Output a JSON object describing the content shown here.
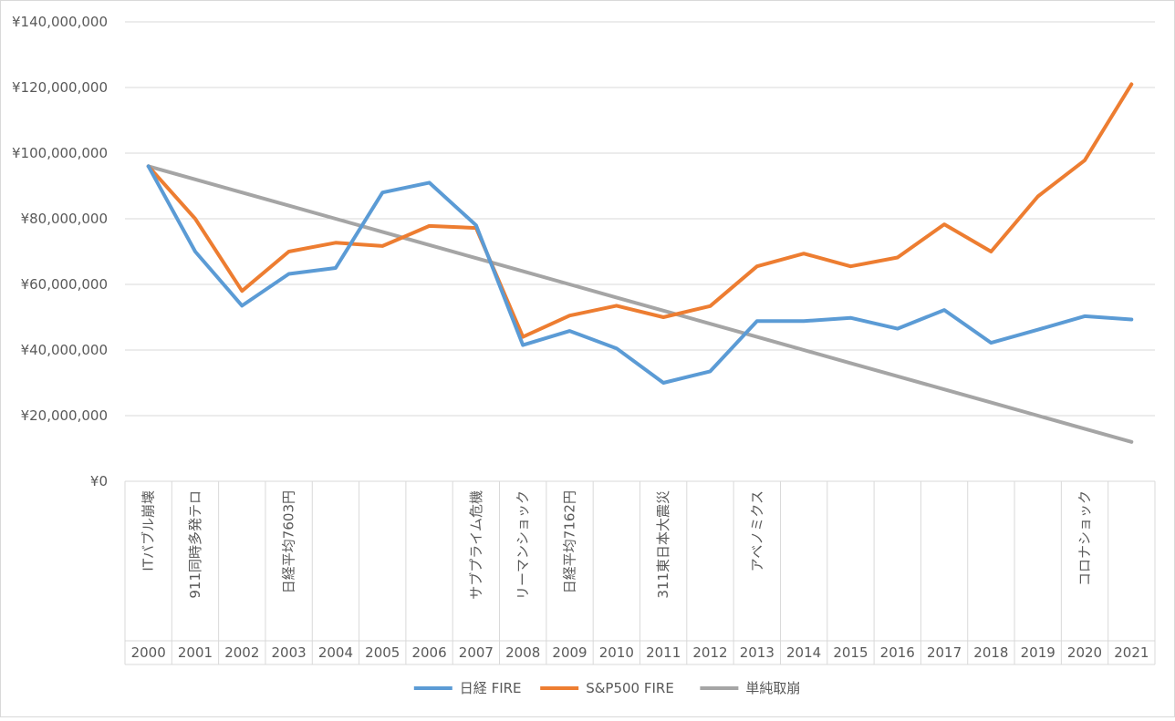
{
  "chart_data": {
    "type": "line",
    "title": "",
    "xlabel": "",
    "ylabel": "",
    "categories": [
      "2000",
      "2001",
      "2002",
      "2003",
      "2004",
      "2005",
      "2006",
      "2007",
      "2008",
      "2009",
      "2010",
      "2011",
      "2012",
      "2013",
      "2014",
      "2015",
      "2016",
      "2017",
      "2018",
      "2019",
      "2020",
      "2021"
    ],
    "events": [
      "ITバブル崩壊",
      "911同時多発テロ",
      "",
      "日経平均7603円",
      "",
      "",
      "",
      "サブプライム危機",
      "リーマンショック",
      "日経平均7162円",
      "",
      "311東日本大震災",
      "",
      "アベノミクス",
      "",
      "",
      "",
      "",
      "",
      "",
      "コロナショック",
      ""
    ],
    "ylim": [
      0,
      140000000
    ],
    "yticks": [
      0,
      20000000,
      40000000,
      60000000,
      80000000,
      100000000,
      120000000,
      140000000
    ],
    "ytick_labels": [
      "¥0",
      "¥20,000,000",
      "¥40,000,000",
      "¥60,000,000",
      "¥80,000,000",
      "¥100,000,000",
      "¥120,000,000",
      "¥140,000,000"
    ],
    "grid": true,
    "legend_position": "bottom",
    "series": [
      {
        "name": "日経 FIRE",
        "color": "#5b9bd5",
        "values": [
          96000000,
          70000000,
          53500000,
          63200000,
          65000000,
          88000000,
          91000000,
          78000000,
          41500000,
          45800000,
          40500000,
          30000000,
          33500000,
          48800000,
          48800000,
          49800000,
          46500000,
          52200000,
          42200000,
          46200000,
          50300000,
          49300000
        ]
      },
      {
        "name": "S&P500 FIRE",
        "color": "#ed7d31",
        "values": [
          96000000,
          80000000,
          58000000,
          70000000,
          72700000,
          71700000,
          77800000,
          77200000,
          44000000,
          50500000,
          53500000,
          50000000,
          53400000,
          65500000,
          69400000,
          65500000,
          68200000,
          78300000,
          70000000,
          86800000,
          97800000,
          121000000
        ]
      },
      {
        "name": "単純取崩",
        "color": "#a5a5a5",
        "values": [
          96000000,
          92000000,
          88000000,
          84000000,
          80000000,
          76000000,
          72000000,
          68000000,
          64000000,
          60000000,
          56000000,
          52000000,
          48000000,
          44000000,
          40000000,
          36000000,
          32000000,
          28000000,
          24000000,
          20000000,
          16000000,
          12000000
        ]
      }
    ]
  }
}
